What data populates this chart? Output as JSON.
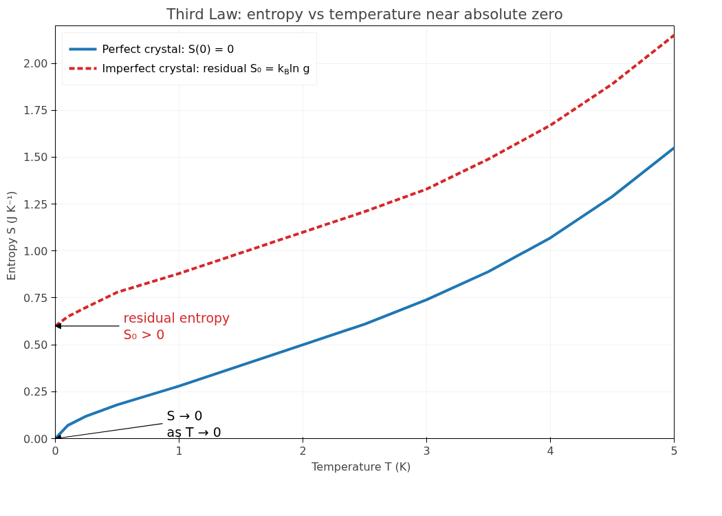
{
  "chart_data": {
    "type": "line",
    "title": "Third Law: entropy vs temperature near absolute zero",
    "xlabel": "Temperature  T  (K)",
    "ylabel": "Entropy  S  (J K⁻¹)",
    "xlim": [
      0,
      5
    ],
    "ylim": [
      0,
      2.2
    ],
    "xticks": [
      0,
      1,
      2,
      3,
      4,
      5
    ],
    "yticks": [
      {
        "value": 0,
        "label": "0.00"
      },
      {
        "value": 0.25,
        "label": "0.25"
      },
      {
        "value": 0.5,
        "label": "0.50"
      },
      {
        "value": 0.75,
        "label": "0.75"
      },
      {
        "value": 1,
        "label": "1.00"
      },
      {
        "value": 1.25,
        "label": "1.25"
      },
      {
        "value": 1.5,
        "label": "1.50"
      },
      {
        "value": 1.75,
        "label": "1.75"
      },
      {
        "value": 2,
        "label": "2.00"
      }
    ],
    "grid": true,
    "legend": "top left",
    "series": [
      {
        "name": "Perfect crystal: S(0) = 0",
        "color": "#1f77b4",
        "line_style": "solid",
        "x": [
          0,
          0.1,
          0.25,
          0.5,
          1,
          1.5,
          2,
          2.5,
          3,
          3.5,
          4,
          4.5,
          5
        ],
        "values": [
          0,
          0.07,
          0.12,
          0.18,
          0.28,
          0.39,
          0.5,
          0.61,
          0.74,
          0.89,
          1.07,
          1.29,
          1.55
        ]
      },
      {
        "name": "Imperfect crystal: residual S₀ = k$_{B}$ln g",
        "color": "#d62728",
        "line_style": "dashed",
        "x": [
          0,
          0.1,
          0.25,
          0.5,
          1,
          1.5,
          2,
          2.5,
          3,
          3.5,
          4,
          4.5,
          5
        ],
        "values": [
          0.6,
          0.65,
          0.7,
          0.78,
          0.88,
          0.99,
          1.1,
          1.21,
          1.33,
          1.49,
          1.67,
          1.89,
          2.15
        ]
      }
    ],
    "annotations": [
      {
        "text": "residual entropy\nS₀ > 0",
        "x": 0,
        "y": 0.6
      },
      {
        "text": "S → 0\nas T → 0",
        "x": 0,
        "y": 0
      }
    ]
  }
}
